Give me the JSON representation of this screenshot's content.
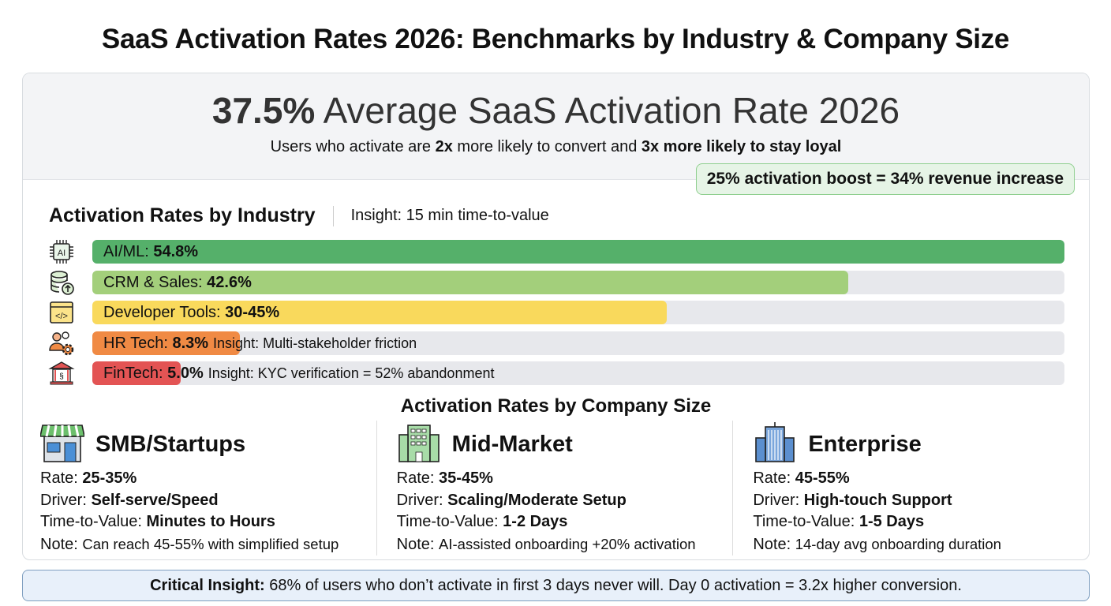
{
  "title": "SaaS Activation Rates 2026: Benchmarks by Industry & Company Size",
  "hero": {
    "value": "37.5%",
    "label": "Average SaaS Activation Rate 2026",
    "sub": [
      "Users who activate are ",
      "2x",
      " more likely to convert and ",
      "3x more likely to stay loyal"
    ],
    "boost": "25% activation boost = 34% revenue increase"
  },
  "industry": {
    "title": "Activation Rates by Industry",
    "insight": "Insight: 15 min time-to-value"
  },
  "chart_data": {
    "type": "bar",
    "orientation": "horizontal",
    "title": "Activation Rates by Industry",
    "categories": [
      "AI/ML",
      "CRM & Sales",
      "Developer Tools",
      "HR Tech",
      "FinTech"
    ],
    "value_labels": [
      "54.8%",
      "42.6%",
      "30-45%",
      "8.3%",
      "5.0%"
    ],
    "values": [
      54.8,
      42.6,
      32.4,
      8.3,
      5.0
    ],
    "colors": [
      "#55b06a",
      "#a3cf7b",
      "#f9d95c",
      "#f08a44",
      "#e35454"
    ],
    "icons": [
      "ai-chip-icon",
      "database-upload-icon",
      "code-window-icon",
      "team-gear-icon",
      "bank-icon"
    ],
    "annotations": [
      "",
      "",
      "",
      "Insight: Multi-stakeholder friction",
      "Insight: KYC verification = 52% abandonment"
    ],
    "xlim": [
      0,
      54.8
    ]
  },
  "size": {
    "title": "Activation Rates by Company Size",
    "columns": [
      {
        "name": "SMB/Startups",
        "icon": "storefront-icon",
        "rate": "25-35%",
        "driver": "Self-serve/Speed",
        "ttv": "Minutes to Hours",
        "note": "Can reach 45-55% with simplified setup"
      },
      {
        "name": "Mid-Market",
        "icon": "office-building-icon",
        "rate": "35-45%",
        "driver": "Scaling/Moderate Setup",
        "ttv": "1-2 Days",
        "note": "AI-assisted onboarding +20% activation"
      },
      {
        "name": "Enterprise",
        "icon": "skyscraper-icon",
        "rate": "45-55%",
        "driver": "High-touch Support",
        "ttv": "1-5 Days",
        "note": "14-day avg onboarding duration"
      }
    ],
    "labels": {
      "rate": "Rate: ",
      "driver": "Driver: ",
      "ttv": "Time-to-Value: ",
      "note": "Note: "
    }
  },
  "critical": {
    "label": "Critical Insight:",
    "text": " 68% of users who don’t activate in first 3 days never will. Day 0 activation = 3.2x higher conversion."
  }
}
